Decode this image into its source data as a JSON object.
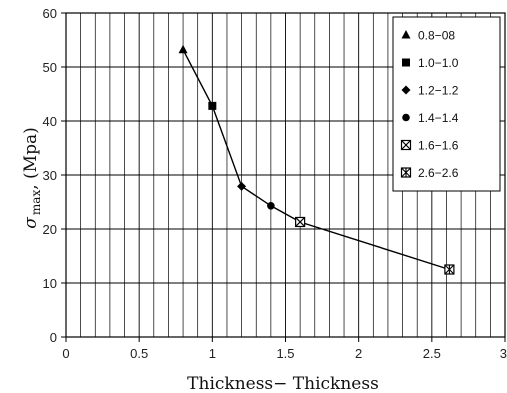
{
  "chart_data": {
    "type": "line",
    "xlabel": "Thickness− Thickness",
    "ylabel": {
      "symbol": "σ",
      "subscript": "max",
      "unit": ", (Mpa)"
    },
    "xlim": [
      0,
      3
    ],
    "ylim": [
      0,
      60
    ],
    "x_ticks": [
      "0",
      "0.5",
      "1",
      "1.5",
      "2",
      "2.5",
      "3"
    ],
    "y_ticks": [
      "0",
      "10",
      "20",
      "30",
      "40",
      "50",
      "60"
    ],
    "grid": true,
    "legend_position": "top-right",
    "series": [
      {
        "name": "0.8−08",
        "marker": "triangle",
        "x": 0.8,
        "y": 53.2
      },
      {
        "name": "1.0−1.0",
        "marker": "square",
        "x": 1.0,
        "y": 42.8
      },
      {
        "name": "1.2−1.2",
        "marker": "diamond",
        "x": 1.2,
        "y": 27.9
      },
      {
        "name": "1.4−1.4",
        "marker": "circle",
        "x": 1.4,
        "y": 24.3
      },
      {
        "name": "1.6−1.6",
        "marker": "boxed-x",
        "x": 1.6,
        "y": 21.3
      },
      {
        "name": "2.6−2.6",
        "marker": "boxed-star",
        "x": 2.62,
        "y": 12.5
      }
    ],
    "line_color": "#000000",
    "grid_color": "#000000"
  }
}
